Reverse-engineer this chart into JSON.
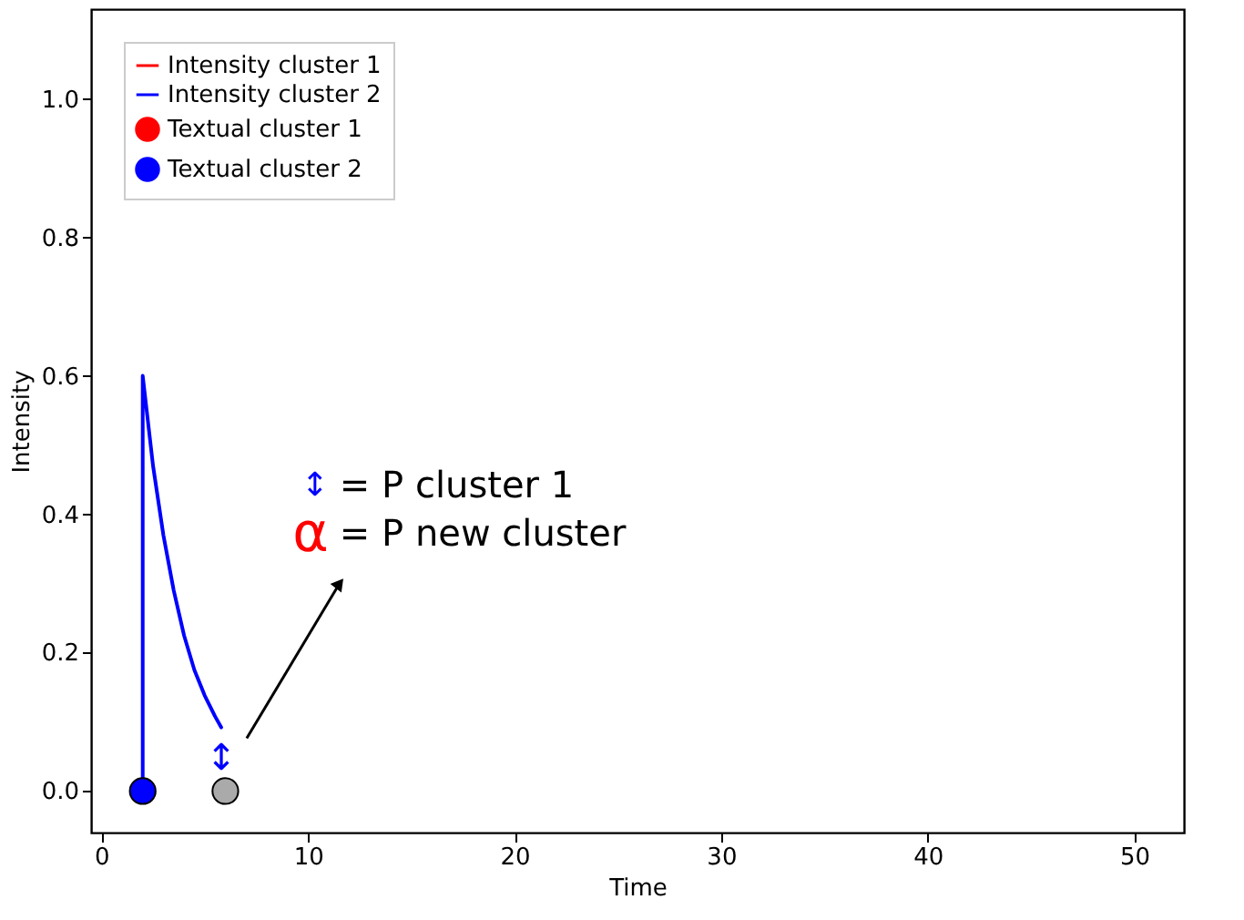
{
  "chart_data": {
    "type": "line",
    "xlabel": "Time",
    "ylabel": "Intensity",
    "xlim": [
      -0.5,
      52.4
    ],
    "xticks": [
      0,
      10,
      20,
      30,
      40,
      50
    ],
    "ylim": [
      -0.06,
      1.13
    ],
    "yticks": [
      {
        "value": 0,
        "label": "0.0"
      },
      0.2,
      0.4,
      0.6,
      0.8,
      {
        "value": 1,
        "label": "1.0"
      }
    ],
    "grid": false,
    "legend": "top left",
    "series": [
      {
        "name": "Intensity cluster 1",
        "color": "#ff0000"
      },
      {
        "name": "Intensity cluster 2",
        "color": "#0000ff",
        "x": [
          2,
          2,
          2.5,
          3,
          3.5,
          4,
          4.5,
          5,
          5.5,
          5.8
        ],
        "values": [
          0,
          0.6,
          0.47,
          0.37,
          0.29,
          0.225,
          0.175,
          0.138,
          0.108,
          0.092
        ]
      },
      {
        "name": "Textual cluster 1",
        "color": "#ff0000",
        "type": "scatter",
        "marker": "circle"
      },
      {
        "name": "Textual cluster 2",
        "color": "#0000ff",
        "type": "scatter",
        "marker": "circle",
        "x": [
          2
        ],
        "values": [
          0
        ]
      },
      {
        "color": "#aaaaaa",
        "type": "scatter",
        "marker": "circle",
        "x": [
          6
        ],
        "values": [
          0
        ]
      }
    ],
    "annotations": [
      "↕",
      "↕ = P cluster 1",
      "α = P new cluster"
    ]
  }
}
